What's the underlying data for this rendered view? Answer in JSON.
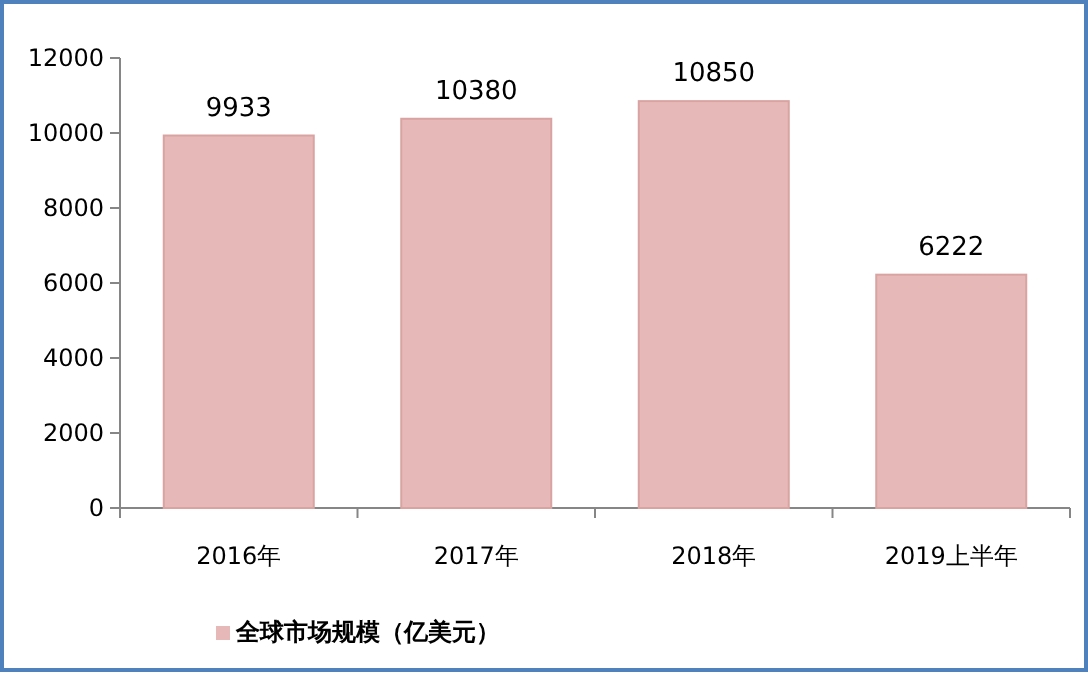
{
  "chart_data": {
    "type": "bar",
    "categories": [
      "2016年",
      "2017年",
      "2018年",
      "2019上半年"
    ],
    "series": [
      {
        "name": "全球市场规模（亿美元）",
        "color": "#e6b8b7",
        "values": [
          9933,
          10380,
          10850,
          6222
        ]
      }
    ],
    "ylim": [
      0,
      12000
    ],
    "yticks": [
      0,
      2000,
      4000,
      6000,
      8000,
      10000,
      12000
    ],
    "data_labels": true,
    "legend": "bottom"
  }
}
